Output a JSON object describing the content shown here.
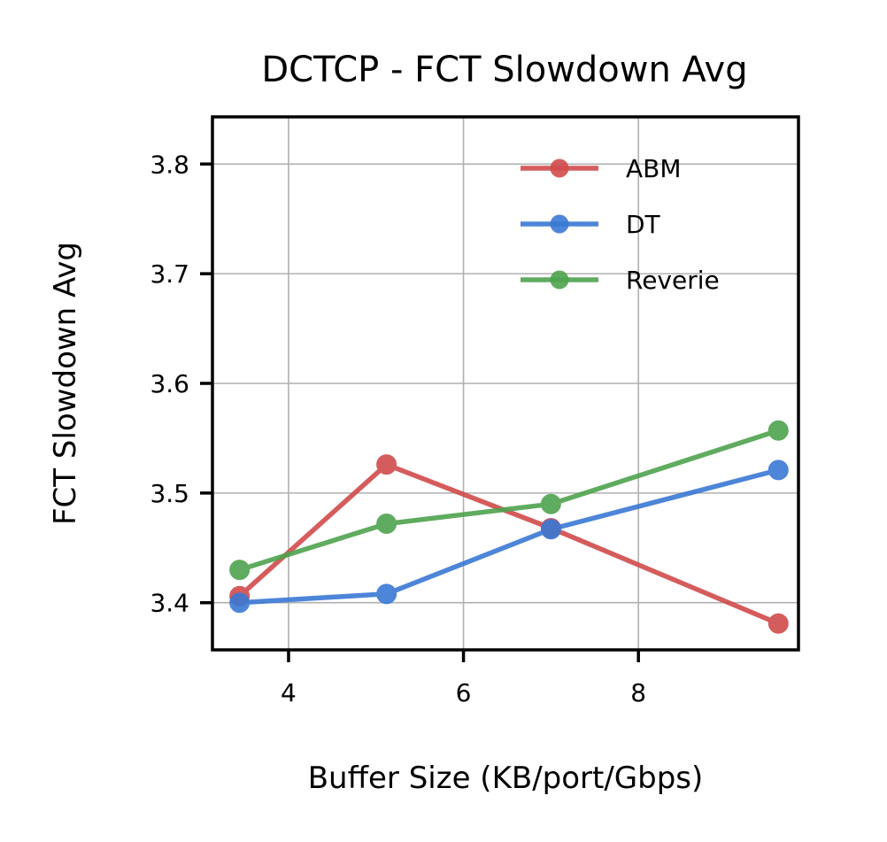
{
  "chart_data": {
    "type": "line",
    "title": "DCTCP - FCT Slowdown Avg",
    "xlabel": "Buffer Size (KB/port/Gbps)",
    "ylabel": "FCT Slowdown Avg",
    "xlim": [
      3.13,
      9.83
    ],
    "ylim": [
      3.357,
      3.843
    ],
    "xticks": [
      4,
      6,
      8
    ],
    "xtick_labels": [
      "4",
      "6",
      "8"
    ],
    "yticks": [
      3.4,
      3.5,
      3.6,
      3.7,
      3.8
    ],
    "ytick_labels": [
      "3.4",
      "3.5",
      "3.6",
      "3.7",
      "3.8"
    ],
    "grid": true,
    "legend_position": "top-right",
    "x": [
      3.44,
      5.12,
      7.0,
      9.6
    ],
    "series": [
      {
        "name": "ABM",
        "color": "#d14b4b",
        "values": [
          3.406,
          3.526,
          3.468,
          3.381
        ]
      },
      {
        "name": "DT",
        "color": "#3a78d4",
        "values": [
          3.4,
          3.408,
          3.467,
          3.521
        ]
      },
      {
        "name": "Reverie",
        "color": "#4ea34e",
        "values": [
          3.43,
          3.472,
          3.49,
          3.557
        ]
      }
    ]
  }
}
